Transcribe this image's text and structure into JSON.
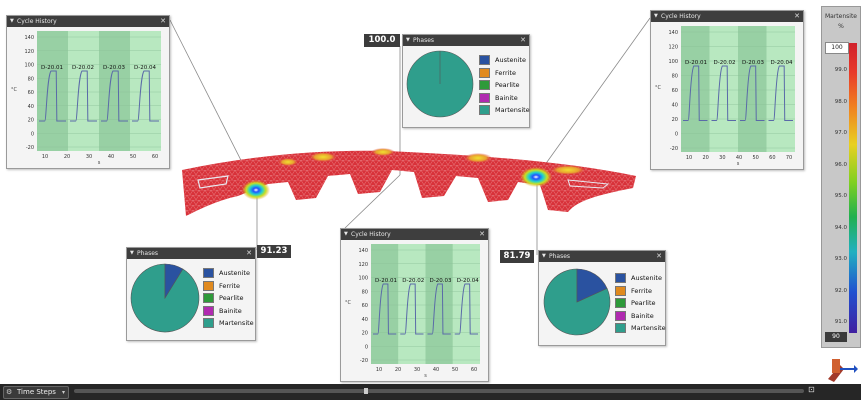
{
  "panels": {
    "cycle_left": {
      "title": "Cycle History",
      "labels": [
        "D-20.01",
        "D-20.02",
        "D-20.03",
        "D-20.04"
      ],
      "yticks": [
        "140",
        "120",
        "100",
        "80",
        "60",
        "40",
        "20",
        "0",
        "-20"
      ],
      "xticks": [
        "10",
        "20",
        "30",
        "40",
        "50",
        "60"
      ],
      "xlabel": "s",
      "ylabel": "°C"
    },
    "cycle_mid": {
      "title": "Cycle History",
      "labels": [
        "D-20.01",
        "D-20.02",
        "D-20.03",
        "D-20.04"
      ],
      "yticks": [
        "140",
        "120",
        "100",
        "80",
        "60",
        "40",
        "20",
        "0",
        "-20"
      ],
      "xticks": [
        "10",
        "20",
        "30",
        "40",
        "50",
        "60"
      ],
      "xlabel": "s",
      "ylabel": "°C"
    },
    "cycle_right": {
      "title": "Cycle History",
      "labels": [
        "D-20.01",
        "D-20.02",
        "D-20.03",
        "D-20.04"
      ],
      "yticks": [
        "140",
        "120",
        "100",
        "80",
        "60",
        "40",
        "20",
        "0",
        "-20"
      ],
      "xticks": [
        "10",
        "20",
        "30",
        "40",
        "50",
        "60",
        "70"
      ],
      "xlabel": "s",
      "ylabel": "°C"
    },
    "phases_top": {
      "title": "Phases",
      "value": "100.0",
      "martensite_fraction": 1.0
    },
    "phases_left": {
      "title": "Phases",
      "value": "91.23",
      "martensite_fraction": 0.9123
    },
    "phases_right": {
      "title": "Phases",
      "value": "81.79",
      "martensite_fraction": 0.8179
    }
  },
  "legend": [
    {
      "label": "Austenite",
      "color": "#2a52a0"
    },
    {
      "label": "Ferrite",
      "color": "#e08a1e"
    },
    {
      "label": "Pearlite",
      "color": "#2e9a3a"
    },
    {
      "label": "Bainite",
      "color": "#b02ab0"
    },
    {
      "label": "Martensite",
      "color": "#2f9e8c"
    }
  ],
  "colorbar": {
    "title": "Martensite",
    "unit": "%",
    "max": "100",
    "min": "90",
    "ticks": [
      "99.0",
      "98.0",
      "97.0",
      "96.0",
      "95.0",
      "94.0",
      "93.0",
      "92.0",
      "91.0"
    ]
  },
  "bottom": {
    "time_steps_label": "Time Steps"
  }
}
